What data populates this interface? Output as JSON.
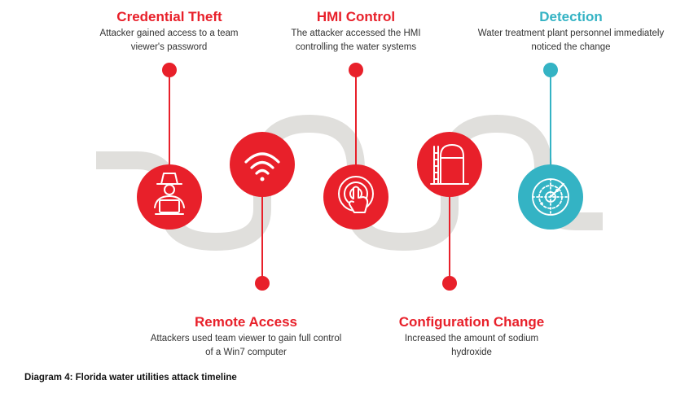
{
  "colors": {
    "accent_red": "#e8202a",
    "accent_teal": "#34b3c4",
    "track_gray": "#e0dfdc",
    "text_dark": "#333333"
  },
  "steps": [
    {
      "title": "Credential Theft",
      "description": "Attacker gained access to a team viewer's password",
      "icon": "hacker-laptop-icon"
    },
    {
      "title": "Remote Access",
      "description": "Attackers used team viewer to gain full control of a Win7 computer",
      "icon": "wifi-icon"
    },
    {
      "title": "HMI Control",
      "description": "The attacker accessed the HMI controlling the water systems",
      "icon": "touch-hand-icon"
    },
    {
      "title": "Configuration Change",
      "description": "Increased the amount of sodium hydroxide",
      "icon": "storage-tank-icon"
    },
    {
      "title": "Detection",
      "description": "Water treatment plant personnel immediately noticed the change",
      "icon": "radar-icon"
    }
  ],
  "caption": "Diagram 4: Florida water utilities attack timeline"
}
